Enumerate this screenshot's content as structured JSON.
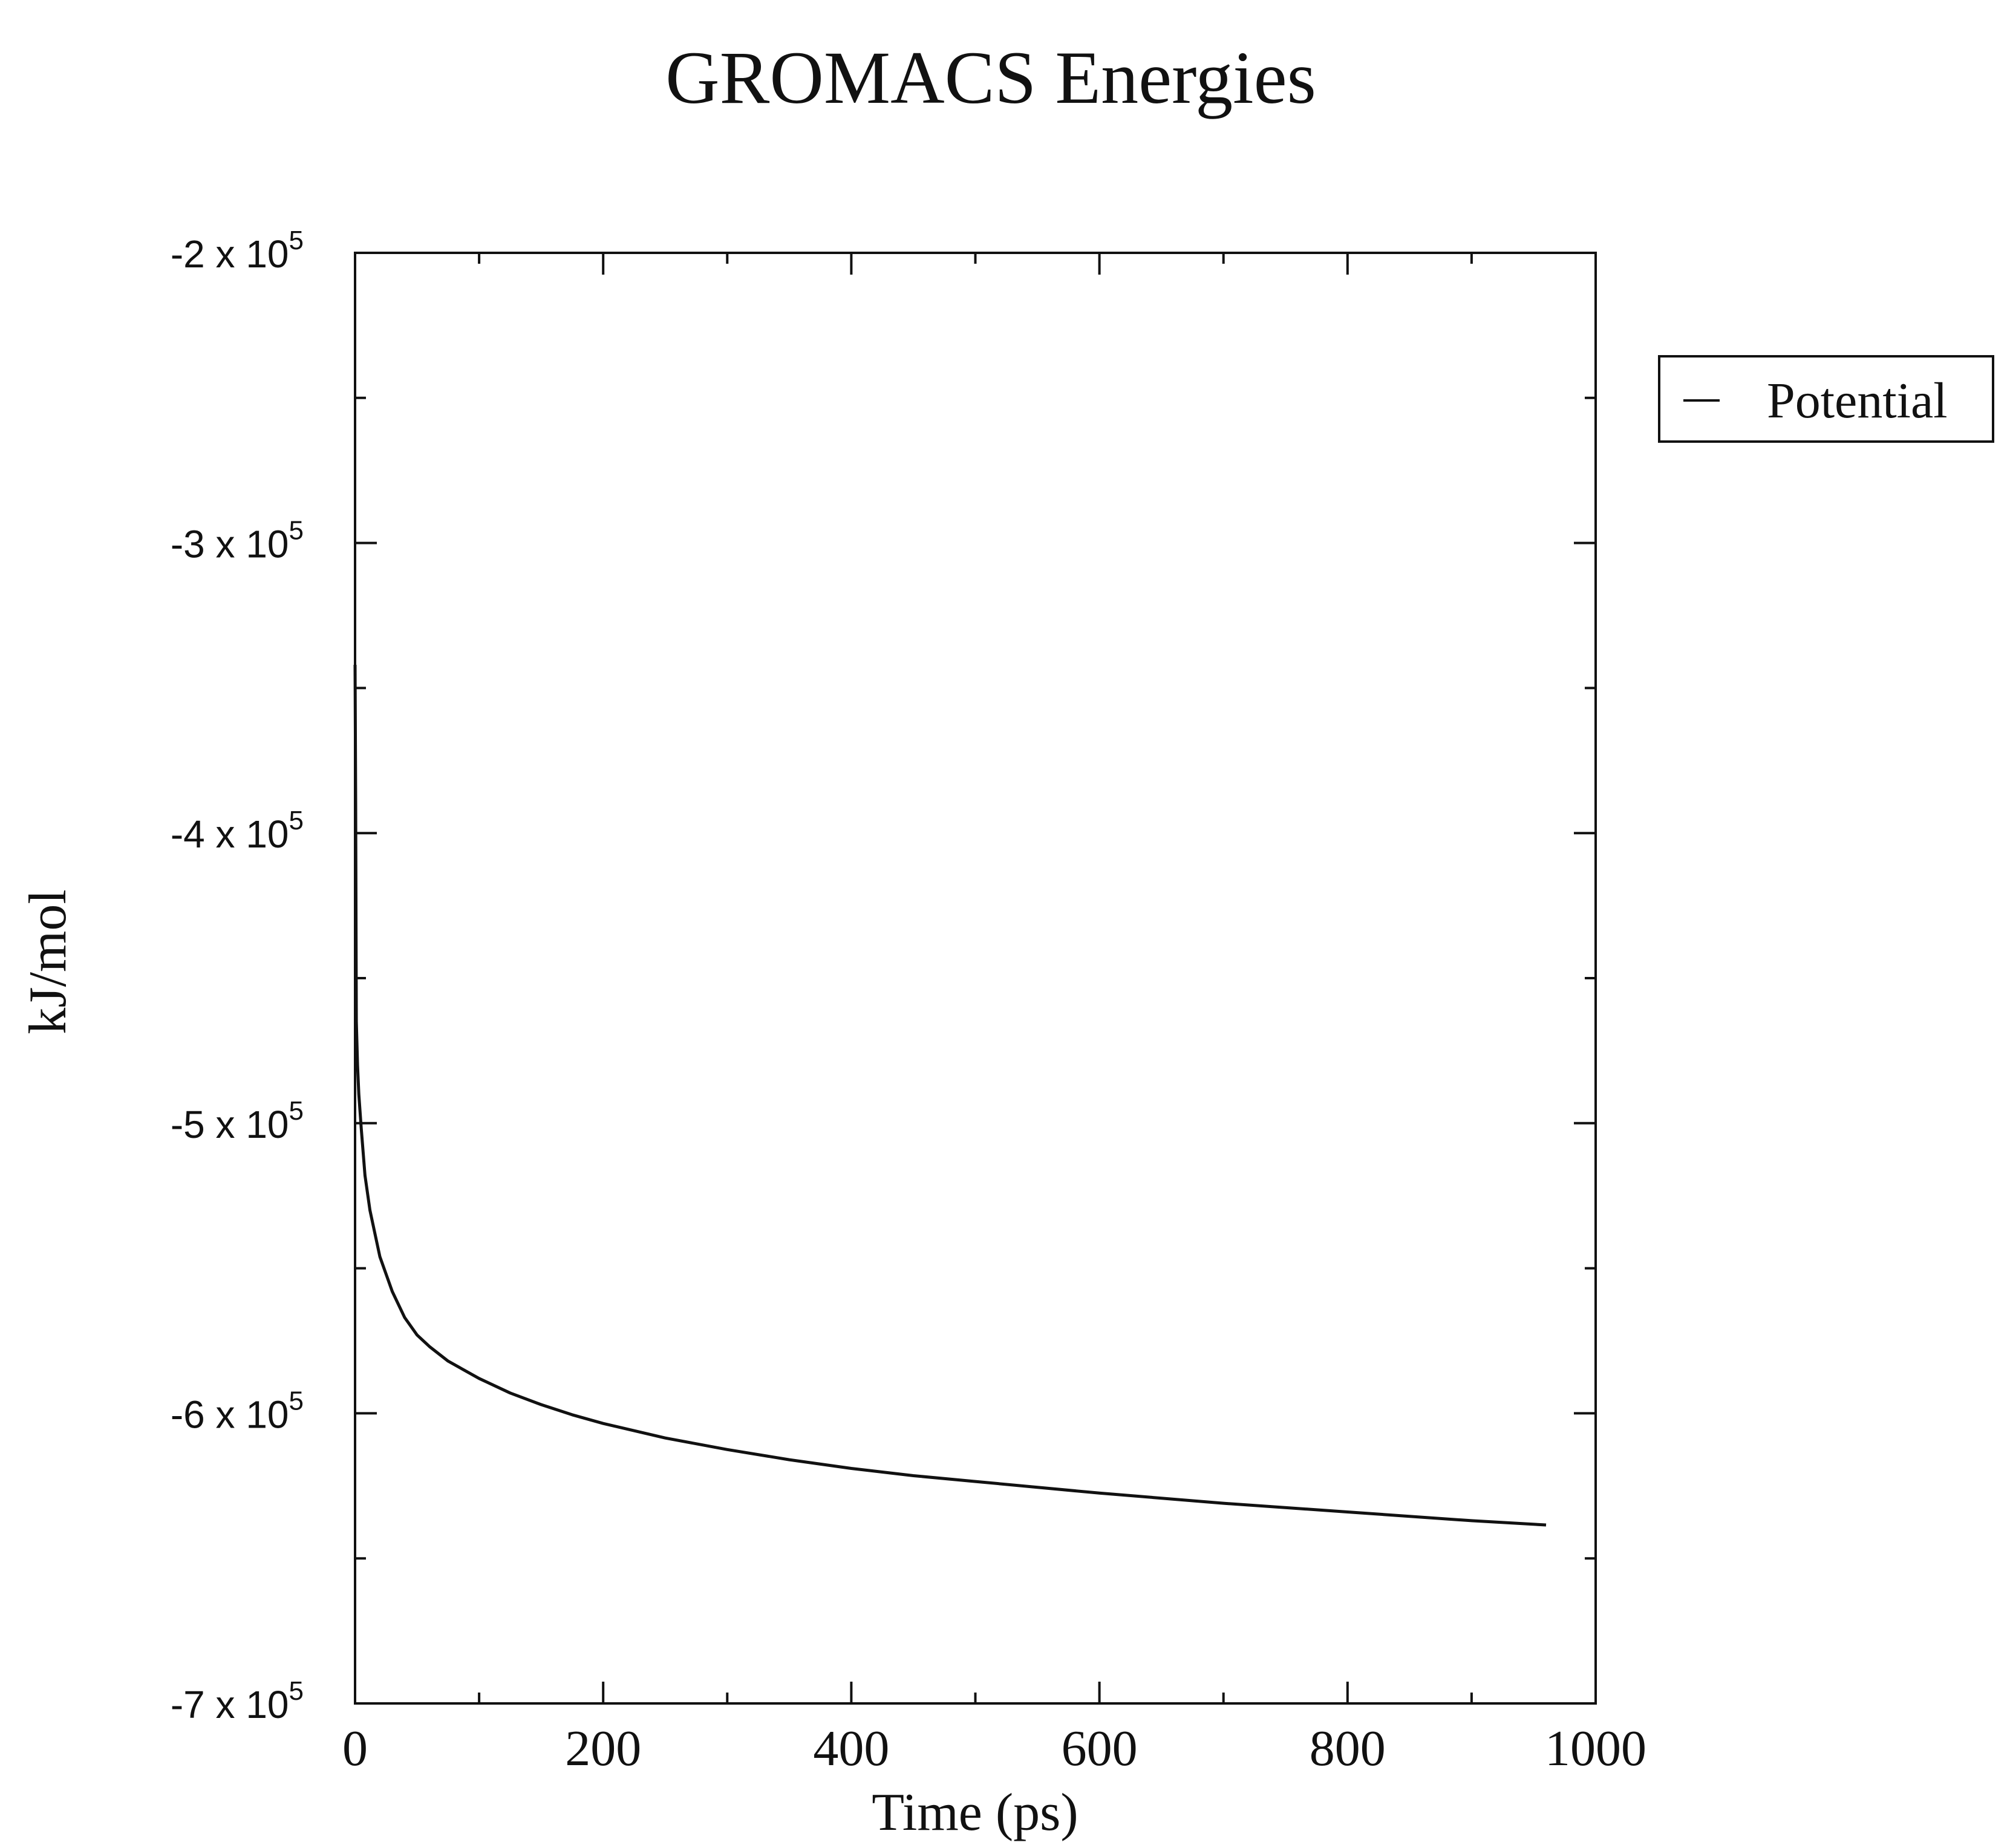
{
  "chart_data": {
    "type": "line",
    "title": "GROMACS Energies",
    "xlabel": "Time (ps)",
    "ylabel": "kJ/mol",
    "xlim": [
      0,
      1000
    ],
    "ylim": [
      -700000,
      -200000
    ],
    "x_ticks": [
      {
        "value": 0,
        "label": "0"
      },
      {
        "value": 200,
        "label": "200"
      },
      {
        "value": 400,
        "label": "400"
      },
      {
        "value": 600,
        "label": "600"
      },
      {
        "value": 800,
        "label": "800"
      },
      {
        "value": 1000,
        "label": "1000"
      }
    ],
    "y_ticks": [
      {
        "value": -200000,
        "mantissa": "-2 x 10",
        "exponent": "5"
      },
      {
        "value": -300000,
        "mantissa": "-3 x 10",
        "exponent": "5"
      },
      {
        "value": -400000,
        "mantissa": "-4 x 10",
        "exponent": "5"
      },
      {
        "value": -500000,
        "mantissa": "-5 x 10",
        "exponent": "5"
      },
      {
        "value": -600000,
        "mantissa": "-6 x 10",
        "exponent": "5"
      },
      {
        "value": -700000,
        "mantissa": "-7 x 10",
        "exponent": "5"
      }
    ],
    "x_minor_step": 100,
    "y_minor_step": 50000,
    "grid": false,
    "legend": {
      "position": "right, outside top",
      "entries": [
        "Potential"
      ]
    },
    "series": [
      {
        "name": "Potential",
        "color": "#111111",
        "x": [
          0,
          0.5,
          1,
          2,
          3,
          5,
          8,
          12,
          20,
          30,
          40,
          50,
          60,
          75,
          100,
          125,
          150,
          175,
          200,
          250,
          300,
          350,
          400,
          450,
          500,
          600,
          700,
          800,
          900,
          960
        ],
        "y": [
          -342000,
          -390000,
          -465000,
          -480000,
          -490000,
          -502000,
          -518000,
          -530000,
          -546000,
          -558000,
          -567000,
          -573000,
          -577000,
          -582000,
          -588000,
          -593000,
          -597000,
          -600500,
          -603500,
          -608500,
          -612500,
          -616000,
          -619000,
          -621500,
          -623500,
          -627500,
          -631000,
          -634000,
          -637000,
          -638500
        ]
      }
    ]
  }
}
